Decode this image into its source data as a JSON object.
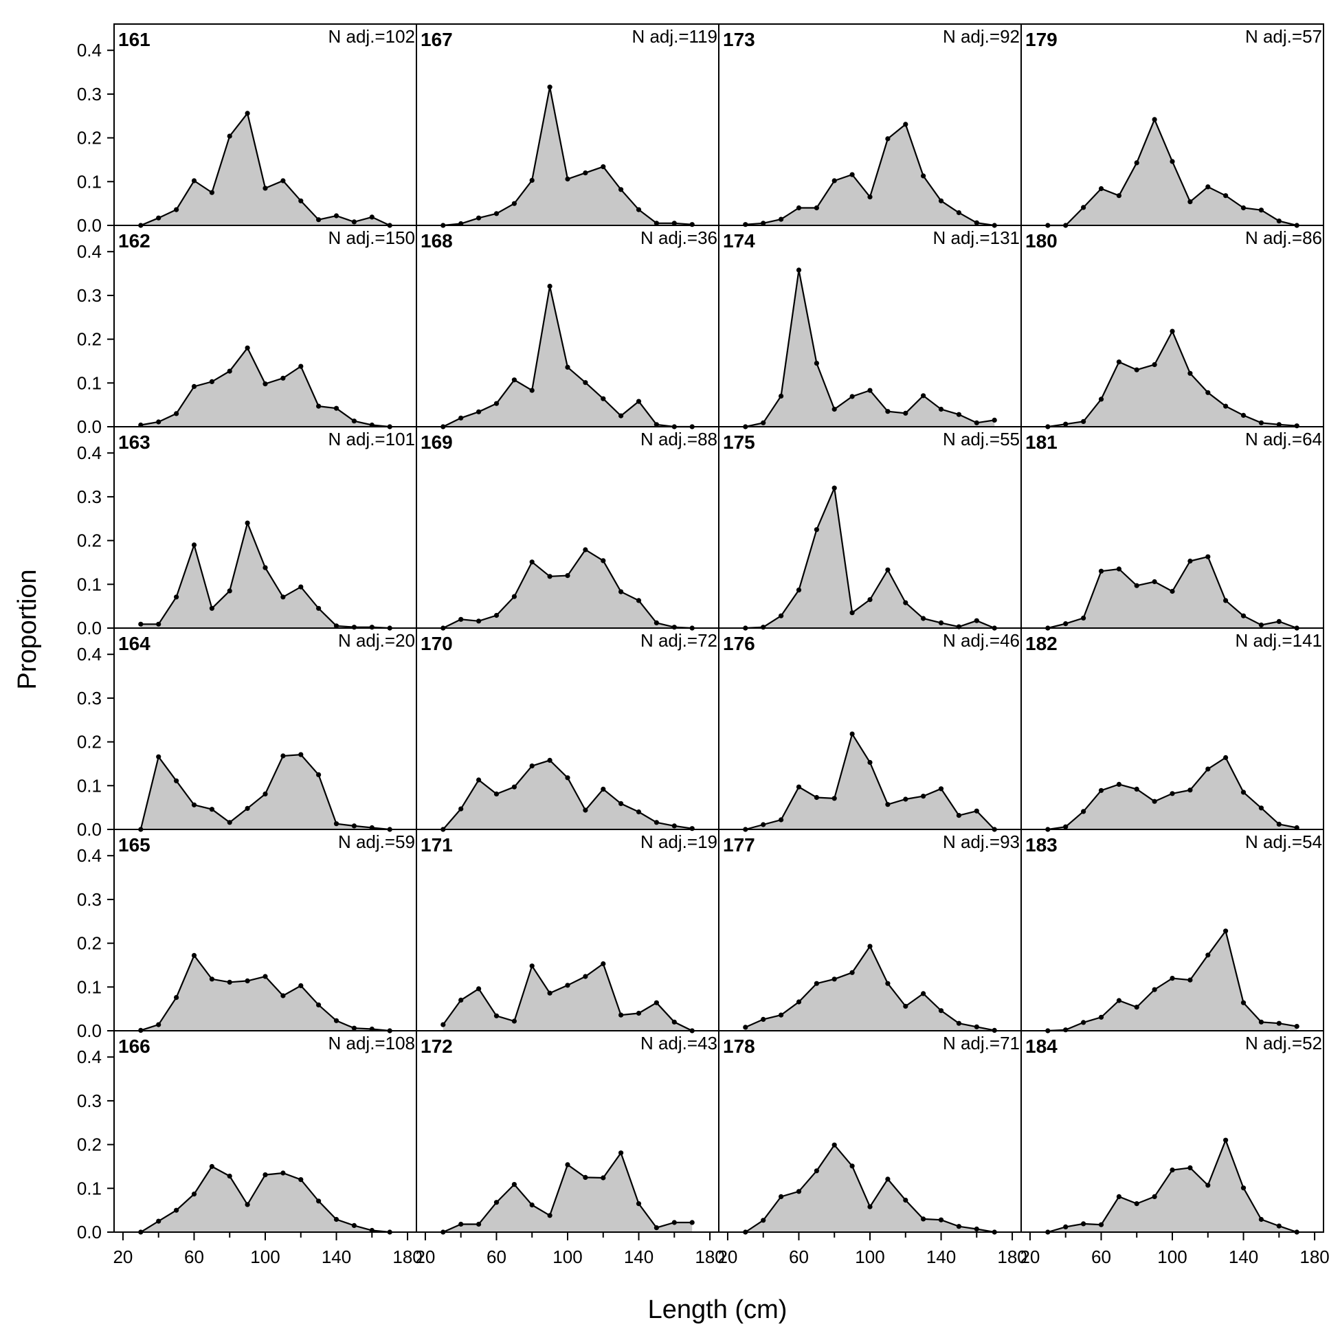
{
  "chart_data": {
    "type": "area",
    "xlabel": "Length (cm)",
    "ylabel": "Proportion",
    "xlim": [
      15,
      185
    ],
    "ylim": [
      0,
      0.46
    ],
    "x_ticks": [
      20,
      60,
      100,
      140,
      180
    ],
    "x_tick_labels": [
      "20",
      "60",
      "100",
      "140",
      "180"
    ],
    "y_ticks": [
      0.0,
      0.1,
      0.2,
      0.3,
      0.4
    ],
    "y_tick_labels": [
      "0.0",
      "0.1",
      "0.2",
      "0.3",
      "0.4"
    ],
    "x": [
      30,
      40,
      50,
      60,
      70,
      80,
      90,
      100,
      110,
      120,
      130,
      140,
      150,
      160,
      170
    ],
    "fill_color": "#c8c8c8",
    "line_color": "#000000",
    "grid": false,
    "panels": [
      {
        "id": "161",
        "n_label": "N adj.=102",
        "values": [
          0.0,
          0.017,
          0.036,
          0.102,
          0.075,
          0.204,
          0.256,
          0.085,
          0.102,
          0.056,
          0.013,
          0.022,
          0.008,
          0.019,
          0.0
        ]
      },
      {
        "id": "162",
        "n_label": "N adj.=150",
        "values": [
          0.004,
          0.011,
          0.03,
          0.092,
          0.103,
          0.127,
          0.18,
          0.098,
          0.111,
          0.138,
          0.047,
          0.042,
          0.013,
          0.004,
          0.0
        ]
      },
      {
        "id": "163",
        "n_label": "N adj.=101",
        "values": [
          0.009,
          0.009,
          0.071,
          0.19,
          0.045,
          0.085,
          0.24,
          0.138,
          0.071,
          0.094,
          0.045,
          0.005,
          0.002,
          0.002,
          0.0
        ]
      },
      {
        "id": "164",
        "n_label": "N adj.=20",
        "values": [
          0.0,
          0.166,
          0.111,
          0.056,
          0.046,
          0.016,
          0.048,
          0.081,
          0.168,
          0.171,
          0.125,
          0.013,
          0.008,
          0.004,
          0.0
        ]
      },
      {
        "id": "165",
        "n_label": "N adj.=59",
        "values": [
          0.001,
          0.014,
          0.076,
          0.172,
          0.118,
          0.111,
          0.114,
          0.124,
          0.08,
          0.103,
          0.059,
          0.023,
          0.006,
          0.004,
          0.0
        ]
      },
      {
        "id": "166",
        "n_label": "N adj.=108",
        "values": [
          0.0,
          0.025,
          0.05,
          0.087,
          0.15,
          0.128,
          0.063,
          0.131,
          0.135,
          0.12,
          0.071,
          0.029,
          0.015,
          0.004,
          0.0
        ]
      },
      {
        "id": "167",
        "n_label": "N adj.=119",
        "values": [
          0.0,
          0.004,
          0.017,
          0.027,
          0.05,
          0.103,
          0.316,
          0.106,
          0.12,
          0.134,
          0.082,
          0.036,
          0.005,
          0.005,
          0.002
        ]
      },
      {
        "id": "168",
        "n_label": "N adj.=36",
        "values": [
          0.0,
          0.02,
          0.034,
          0.053,
          0.107,
          0.083,
          0.321,
          0.136,
          0.101,
          0.064,
          0.025,
          0.058,
          0.005,
          0.0,
          0.0
        ]
      },
      {
        "id": "169",
        "n_label": "N adj.=88",
        "values": [
          0.0,
          0.02,
          0.016,
          0.029,
          0.072,
          0.151,
          0.118,
          0.12,
          0.179,
          0.154,
          0.083,
          0.063,
          0.012,
          0.002,
          0.0
        ]
      },
      {
        "id": "170",
        "n_label": "N adj.=72",
        "values": [
          0.0,
          0.047,
          0.113,
          0.081,
          0.097,
          0.145,
          0.158,
          0.118,
          0.044,
          0.092,
          0.059,
          0.04,
          0.016,
          0.008,
          0.002
        ]
      },
      {
        "id": "171",
        "n_label": "N adj.=19",
        "values": [
          0.014,
          0.07,
          0.096,
          0.034,
          0.022,
          0.148,
          0.086,
          0.104,
          0.124,
          0.153,
          0.036,
          0.04,
          0.064,
          0.02,
          0.0
        ]
      },
      {
        "id": "172",
        "n_label": "N adj.=43",
        "values": [
          0.0,
          0.018,
          0.018,
          0.068,
          0.109,
          0.062,
          0.038,
          0.154,
          0.125,
          0.124,
          0.181,
          0.065,
          0.01,
          0.022,
          0.022
        ]
      },
      {
        "id": "173",
        "n_label": "N adj.=92",
        "values": [
          0.002,
          0.005,
          0.014,
          0.04,
          0.04,
          0.102,
          0.116,
          0.065,
          0.198,
          0.231,
          0.113,
          0.056,
          0.029,
          0.006,
          0.0
        ]
      },
      {
        "id": "174",
        "n_label": "N adj.=131",
        "values": [
          0.0,
          0.009,
          0.07,
          0.358,
          0.145,
          0.04,
          0.069,
          0.083,
          0.035,
          0.031,
          0.071,
          0.04,
          0.028,
          0.009,
          0.015
        ]
      },
      {
        "id": "175",
        "n_label": "N adj.=55",
        "values": [
          0.0,
          0.002,
          0.028,
          0.087,
          0.225,
          0.32,
          0.035,
          0.065,
          0.133,
          0.058,
          0.022,
          0.012,
          0.003,
          0.017,
          0.0
        ]
      },
      {
        "id": "176",
        "n_label": "N adj.=46",
        "values": [
          0.0,
          0.011,
          0.022,
          0.097,
          0.073,
          0.071,
          0.218,
          0.153,
          0.057,
          0.069,
          0.076,
          0.093,
          0.032,
          0.042,
          0.0
        ]
      },
      {
        "id": "177",
        "n_label": "N adj.=93",
        "values": [
          0.008,
          0.026,
          0.036,
          0.066,
          0.108,
          0.118,
          0.133,
          0.193,
          0.108,
          0.056,
          0.085,
          0.046,
          0.017,
          0.009,
          0.001
        ]
      },
      {
        "id": "178",
        "n_label": "N adj.=71",
        "values": [
          0.0,
          0.027,
          0.081,
          0.093,
          0.14,
          0.199,
          0.151,
          0.058,
          0.121,
          0.073,
          0.03,
          0.028,
          0.013,
          0.007,
          0.0
        ]
      },
      {
        "id": "179",
        "n_label": "N adj.=57",
        "values": [
          0.0,
          0.0,
          0.041,
          0.084,
          0.068,
          0.143,
          0.242,
          0.146,
          0.054,
          0.088,
          0.068,
          0.04,
          0.035,
          0.01,
          0.0
        ]
      },
      {
        "id": "180",
        "n_label": "N adj.=86",
        "values": [
          0.0,
          0.006,
          0.012,
          0.063,
          0.148,
          0.13,
          0.142,
          0.218,
          0.122,
          0.078,
          0.047,
          0.026,
          0.009,
          0.005,
          0.002
        ]
      },
      {
        "id": "181",
        "n_label": "N adj.=64",
        "values": [
          0.0,
          0.01,
          0.023,
          0.13,
          0.135,
          0.097,
          0.106,
          0.084,
          0.153,
          0.163,
          0.063,
          0.028,
          0.007,
          0.015,
          0.0
        ]
      },
      {
        "id": "182",
        "n_label": "N adj.=141",
        "values": [
          0.0,
          0.006,
          0.041,
          0.089,
          0.103,
          0.092,
          0.064,
          0.082,
          0.09,
          0.138,
          0.164,
          0.085,
          0.049,
          0.012,
          0.004
        ]
      },
      {
        "id": "183",
        "n_label": "N adj.=54",
        "values": [
          0.0,
          0.002,
          0.019,
          0.031,
          0.069,
          0.054,
          0.094,
          0.12,
          0.116,
          0.173,
          0.228,
          0.064,
          0.02,
          0.017,
          0.01
        ]
      },
      {
        "id": "184",
        "n_label": "N adj.=52",
        "values": [
          0.0,
          0.012,
          0.019,
          0.017,
          0.081,
          0.065,
          0.081,
          0.142,
          0.147,
          0.107,
          0.21,
          0.101,
          0.029,
          0.014,
          0.0
        ]
      }
    ]
  }
}
